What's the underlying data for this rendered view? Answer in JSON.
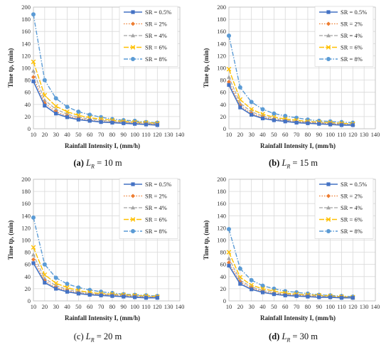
{
  "series_styles": [
    {
      "color": "#4472C4",
      "dash": "",
      "marker": "square",
      "width": 1.6
    },
    {
      "color": "#ED7D31",
      "dash": "1.5,2",
      "marker": "diamond",
      "width": 1.2
    },
    {
      "color": "#A5A5A5",
      "dash": "5,2",
      "marker": "triangle",
      "width": 1.2
    },
    {
      "color": "#FFC000",
      "dash": "7,2",
      "marker": "x",
      "width": 1.4
    },
    {
      "color": "#5B9BD5",
      "dash": "6,2,1.5,2",
      "marker": "circle",
      "width": 1.4
    }
  ],
  "chart_data": [
    {
      "type": "line",
      "caption_label": "(a)",
      "caption_var": "L",
      "caption_sub": "R",
      "caption_value": " = 10 m",
      "xlabel": "Rainfall Intensity I, (mm/h)",
      "ylabel": "Time tp, (min)",
      "xlim": [
        10,
        140
      ],
      "ylim": [
        0,
        200
      ],
      "xticks": [
        10,
        20,
        30,
        40,
        50,
        60,
        70,
        80,
        90,
        100,
        110,
        120,
        130,
        140
      ],
      "yticks": [
        0,
        20,
        40,
        60,
        80,
        100,
        120,
        140,
        160,
        180,
        200
      ],
      "x": [
        10,
        20,
        30,
        40,
        50,
        60,
        70,
        80,
        90,
        100,
        110,
        120
      ],
      "series": [
        {
          "name": "SR = 0.5%",
          "values": [
            78,
            38,
            25,
            19,
            15,
            13,
            11,
            10,
            9,
            8,
            7,
            6
          ]
        },
        {
          "name": "SR = 2%",
          "values": [
            85,
            42,
            28,
            21,
            17,
            14,
            12,
            11,
            10,
            9,
            8,
            7
          ]
        },
        {
          "name": "SR = 4%",
          "values": [
            95,
            47,
            32,
            24,
            19,
            16,
            14,
            12,
            11,
            10,
            9,
            8
          ]
        },
        {
          "name": "SR = 6%",
          "values": [
            110,
            55,
            37,
            28,
            22,
            18,
            16,
            14,
            12,
            11,
            10,
            9
          ]
        },
        {
          "name": "SR = 8%",
          "values": [
            188,
            80,
            50,
            36,
            28,
            23,
            19,
            16,
            14,
            13,
            11,
            10
          ]
        }
      ]
    },
    {
      "type": "line",
      "caption_label": "(b)",
      "caption_var": "L",
      "caption_sub": "R",
      "caption_value": " = 15 m",
      "xlabel": "Rainfall Intensity I, (mm/h)",
      "ylabel": "Time tp, (min)",
      "xlim": [
        10,
        140
      ],
      "ylim": [
        0,
        200
      ],
      "xticks": [
        10,
        20,
        30,
        40,
        50,
        60,
        70,
        80,
        90,
        100,
        110,
        120,
        130,
        140
      ],
      "yticks": [
        0,
        20,
        40,
        60,
        80,
        100,
        120,
        140,
        160,
        180,
        200
      ],
      "x": [
        10,
        20,
        30,
        40,
        50,
        60,
        70,
        80,
        90,
        100,
        110,
        120
      ],
      "series": [
        {
          "name": "SR = 0.5%",
          "values": [
            72,
            35,
            23,
            17,
            14,
            12,
            10,
            9,
            8,
            7,
            6,
            6
          ]
        },
        {
          "name": "SR = 2%",
          "values": [
            77,
            38,
            25,
            19,
            15,
            13,
            11,
            10,
            9,
            8,
            7,
            6
          ]
        },
        {
          "name": "SR = 4%",
          "values": [
            85,
            42,
            28,
            21,
            17,
            14,
            12,
            11,
            10,
            9,
            8,
            7
          ]
        },
        {
          "name": "SR = 6%",
          "values": [
            98,
            48,
            32,
            24,
            19,
            16,
            14,
            12,
            11,
            10,
            9,
            8
          ]
        },
        {
          "name": "SR = 8%",
          "values": [
            153,
            68,
            44,
            32,
            25,
            21,
            18,
            15,
            13,
            12,
            11,
            10
          ]
        }
      ]
    },
    {
      "type": "line",
      "caption_label": "(c)",
      "caption_var": "L",
      "caption_sub": "R",
      "caption_value": " = 20 m",
      "xlabel": "Rainfall Intensity I, (mm/h)",
      "ylabel": "Time tp, (min)",
      "xlim": [
        10,
        140
      ],
      "ylim": [
        0,
        200
      ],
      "xticks": [
        10,
        20,
        30,
        40,
        50,
        60,
        70,
        80,
        90,
        100,
        110,
        120,
        130,
        140
      ],
      "yticks": [
        0,
        20,
        40,
        60,
        80,
        100,
        120,
        140,
        160,
        180,
        200
      ],
      "x": [
        10,
        20,
        30,
        40,
        50,
        60,
        70,
        80,
        90,
        100,
        110,
        120
      ],
      "series": [
        {
          "name": "SR = 0.5%",
          "values": [
            62,
            30,
            20,
            15,
            12,
            10,
            9,
            8,
            7,
            6,
            5,
            5
          ]
        },
        {
          "name": "SR = 2%",
          "values": [
            68,
            33,
            22,
            17,
            13,
            11,
            10,
            9,
            8,
            7,
            6,
            6
          ]
        },
        {
          "name": "SR = 4%",
          "values": [
            76,
            37,
            25,
            19,
            15,
            12,
            11,
            10,
            9,
            8,
            7,
            6
          ]
        },
        {
          "name": "SR = 6%",
          "values": [
            88,
            43,
            29,
            22,
            17,
            14,
            12,
            11,
            10,
            9,
            8,
            7
          ]
        },
        {
          "name": "SR = 8%",
          "values": [
            137,
            60,
            38,
            28,
            22,
            18,
            15,
            13,
            11,
            10,
            9,
            8
          ]
        }
      ]
    },
    {
      "type": "line",
      "caption_label": "(d)",
      "caption_var": "L",
      "caption_sub": "R",
      "caption_value": " = 30 m",
      "xlabel": "Rainfall Intensity I, (mm/h)",
      "ylabel": "Time tp, (min)",
      "xlim": [
        10,
        140
      ],
      "ylim": [
        0,
        200
      ],
      "xticks": [
        10,
        20,
        30,
        40,
        50,
        60,
        70,
        80,
        90,
        100,
        110,
        120,
        130,
        140
      ],
      "yticks": [
        0,
        20,
        40,
        60,
        80,
        100,
        120,
        140,
        160,
        180,
        200
      ],
      "x": [
        10,
        20,
        30,
        40,
        50,
        60,
        70,
        80,
        90,
        100,
        110,
        120
      ],
      "series": [
        {
          "name": "SR = 0.5%",
          "values": [
            58,
            28,
            19,
            14,
            11,
            9,
            8,
            7,
            6,
            6,
            5,
            5
          ]
        },
        {
          "name": "SR = 2%",
          "values": [
            63,
            31,
            21,
            15,
            12,
            10,
            9,
            8,
            7,
            6,
            6,
            5
          ]
        },
        {
          "name": "SR = 4%",
          "values": [
            70,
            34,
            23,
            17,
            14,
            11,
            10,
            9,
            8,
            7,
            6,
            6
          ]
        },
        {
          "name": "SR = 6%",
          "values": [
            80,
            39,
            26,
            20,
            16,
            13,
            11,
            10,
            9,
            8,
            7,
            6
          ]
        },
        {
          "name": "SR = 8%",
          "values": [
            118,
            53,
            34,
            25,
            20,
            16,
            14,
            12,
            10,
            9,
            8,
            7
          ]
        }
      ]
    }
  ]
}
